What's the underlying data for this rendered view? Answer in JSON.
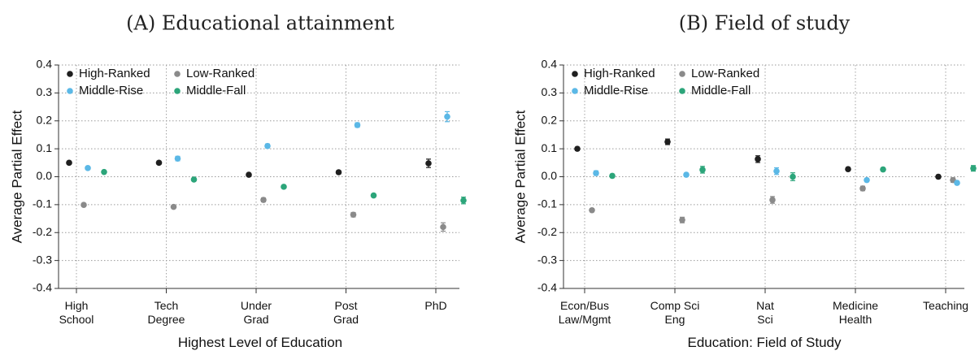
{
  "colors": {
    "High-Ranked": "#1f1f1f",
    "Low-Ranked": "#8a8a8a",
    "Middle-Rise": "#5bb8e6",
    "Middle-Fall": "#2ca57a"
  },
  "chart_data": [
    {
      "type": "scatter",
      "title": "(A) Educational attainment",
      "xlabel": "Highest Level of Education",
      "ylabel": "Average Partial Effect",
      "ylim": [
        -0.4,
        0.4
      ],
      "yticks": [
        "0.4",
        "0.3",
        "0.2",
        "0.1",
        "0.0",
        "-0.1",
        "-0.2",
        "-0.3",
        "-0.4"
      ],
      "grid": true,
      "legend_position": "top-left",
      "categories": [
        "High\nSchool",
        "Tech\nDegree",
        "Under\nGrad",
        "Post\nGrad",
        "PhD"
      ],
      "series": [
        {
          "name": "High-Ranked",
          "values": [
            0.05,
            0.05,
            0.007,
            0.016,
            0.048
          ],
          "errors": [
            0.005,
            0.005,
            0.005,
            0.006,
            0.015
          ]
        },
        {
          "name": "Low-Ranked",
          "values": [
            -0.101,
            -0.108,
            -0.083,
            -0.136,
            -0.18
          ],
          "errors": [
            0.005,
            0.005,
            0.007,
            0.008,
            0.015
          ]
        },
        {
          "name": "Middle-Rise",
          "values": [
            0.031,
            0.065,
            0.11,
            0.185,
            0.215
          ],
          "errors": [
            0.005,
            0.008,
            0.007,
            0.008,
            0.018
          ]
        },
        {
          "name": "Middle-Fall",
          "values": [
            0.017,
            -0.01,
            -0.036,
            -0.067,
            -0.085
          ],
          "errors": [
            0.004,
            0.004,
            0.005,
            0.005,
            0.012
          ]
        }
      ]
    },
    {
      "type": "scatter",
      "title": "(B) Field of study",
      "xlabel": "Education: Field of Study",
      "ylabel": "Average Partial Effect",
      "ylim": [
        -0.4,
        0.4
      ],
      "yticks": [
        "0.4",
        "0.3",
        "0.2",
        "0.1",
        "0.0",
        "-0.1",
        "-0.2",
        "-0.3",
        "-0.4"
      ],
      "grid": true,
      "legend_position": "top-left",
      "categories": [
        "Econ/Bus\nLaw/Mgmt",
        "Comp Sci\nEng",
        "Nat\nSci",
        "Medicine\nHealth",
        "Teaching"
      ],
      "series": [
        {
          "name": "High-Ranked",
          "values": [
            0.1,
            0.125,
            0.063,
            0.027,
            0.0
          ],
          "errors": [
            0.006,
            0.01,
            0.012,
            0.006,
            0.006
          ]
        },
        {
          "name": "Low-Ranked",
          "values": [
            -0.12,
            -0.155,
            -0.083,
            -0.042,
            -0.012
          ],
          "errors": [
            0.006,
            0.01,
            0.012,
            0.008,
            0.008
          ]
        },
        {
          "name": "Middle-Rise",
          "values": [
            0.013,
            0.007,
            0.02,
            -0.012,
            -0.022
          ],
          "errors": [
            0.008,
            0.006,
            0.012,
            0.006,
            0.006
          ]
        },
        {
          "name": "Middle-Fall",
          "values": [
            0.003,
            0.025,
            0.0,
            0.026,
            0.03
          ],
          "errors": [
            0.006,
            0.012,
            0.014,
            0.006,
            0.01
          ]
        }
      ]
    }
  ]
}
